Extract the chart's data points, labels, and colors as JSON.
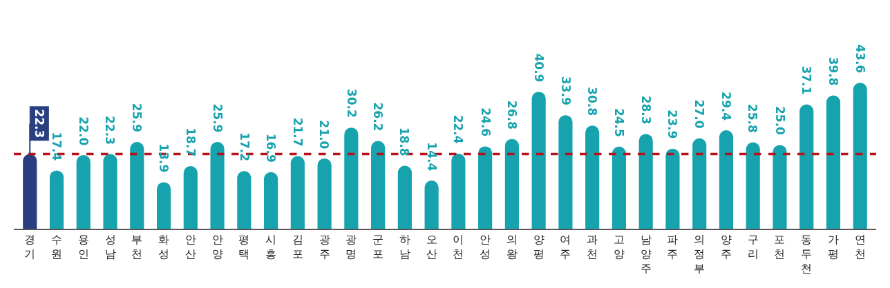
{
  "chart_data": {
    "type": "bar",
    "categories": [
      "경기",
      "수원",
      "용인",
      "성남",
      "부천",
      "화성",
      "안산",
      "안양",
      "평택",
      "시흥",
      "김포",
      "광주",
      "광명",
      "군포",
      "하남",
      "오산",
      "이천",
      "안성",
      "의왕",
      "양평",
      "여주",
      "과천",
      "고양",
      "남양주",
      "파주",
      "의정부",
      "양주",
      "구리",
      "포천",
      "동두천",
      "가평",
      "연천"
    ],
    "values": [
      22.3,
      17.4,
      22.0,
      22.3,
      25.9,
      13.9,
      18.7,
      25.9,
      17.2,
      16.9,
      21.7,
      21.0,
      30.2,
      26.2,
      18.8,
      14.4,
      22.4,
      24.6,
      26.8,
      40.9,
      33.9,
      30.8,
      24.5,
      28.3,
      23.9,
      27.0,
      29.4,
      25.8,
      25.0,
      37.1,
      39.8,
      43.6
    ],
    "value_labels": [
      null,
      "17.4",
      "22.0",
      "22.3",
      "25.9",
      "13.9",
      "18.7",
      "25.9",
      "17.2",
      "16.9",
      "21.7",
      "21.0",
      "30.2",
      "26.2",
      "18.8",
      "14.4",
      "22.4",
      "24.6",
      "26.8",
      "40.9",
      "33.9",
      "30.8",
      "24.5",
      "28.3",
      "23.9",
      "27.0",
      "29.4",
      "25.8",
      "25.0",
      "37.1",
      "39.8",
      "43.6"
    ],
    "colors": [
      "#2a3f80",
      "#17a3ae",
      "#17a3ae",
      "#17a3ae",
      "#17a3ae",
      "#17a3ae",
      "#17a3ae",
      "#17a3ae",
      "#17a3ae",
      "#17a3ae",
      "#17a3ae",
      "#17a3ae",
      "#17a3ae",
      "#17a3ae",
      "#17a3ae",
      "#17a3ae",
      "#17a3ae",
      "#17a3ae",
      "#17a3ae",
      "#17a3ae",
      "#17a3ae",
      "#17a3ae",
      "#17a3ae",
      "#17a3ae",
      "#17a3ae",
      "#17a3ae",
      "#17a3ae",
      "#17a3ae",
      "#17a3ae",
      "#17a3ae",
      "#17a3ae",
      "#17a3ae"
    ],
    "annotations": [
      {
        "text": "22.3",
        "x": "경기",
        "y": 22.3
      }
    ],
    "ref_lines": [
      {
        "axis": "y",
        "value": 22.3,
        "color": "#b5121b",
        "line_style": "dashed"
      }
    ],
    "tick_labels": "x"
  }
}
